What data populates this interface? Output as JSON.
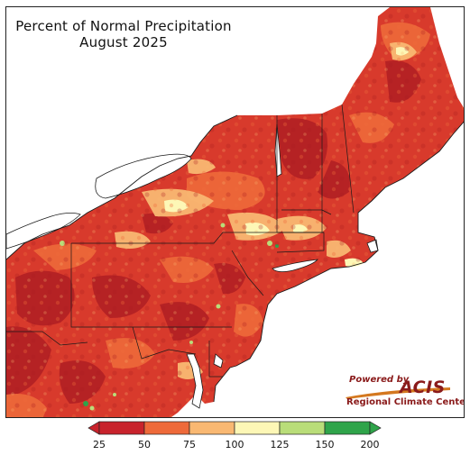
{
  "title_line1": "Percent of Normal Precipitation",
  "title_line2": "August 2025",
  "colorbar": {
    "ticks": [
      "25",
      "50",
      "75",
      "100",
      "125",
      "150",
      "200"
    ],
    "bins": [
      {
        "from": 25,
        "to": 50,
        "color": "#c8232c"
      },
      {
        "from": 50,
        "to": 75,
        "color": "#ee6a3a"
      },
      {
        "from": 75,
        "to": 100,
        "color": "#f9b872"
      },
      {
        "from": 100,
        "to": 125,
        "color": "#fdf7b6"
      },
      {
        "from": 125,
        "to": 150,
        "color": "#b9dd79"
      },
      {
        "from": 150,
        "to": 200,
        "color": "#2fa44a"
      }
    ],
    "under_color": "#c8232c",
    "over_color": "#2fa44a"
  },
  "logo": {
    "powered_by": "Powered by",
    "name": "ACIS",
    "subtitle": "Regional Climate Centers"
  },
  "colors": {
    "very_dry": "#b01e23",
    "dry": "#d83a2c",
    "moderate": "#ee6a3a",
    "near_low": "#f9b872",
    "near_normal": "#fdf7b6",
    "wet": "#b9dd79",
    "very_wet": "#2fa44a",
    "water": "#ffffff",
    "border": "#1a1a1a"
  }
}
